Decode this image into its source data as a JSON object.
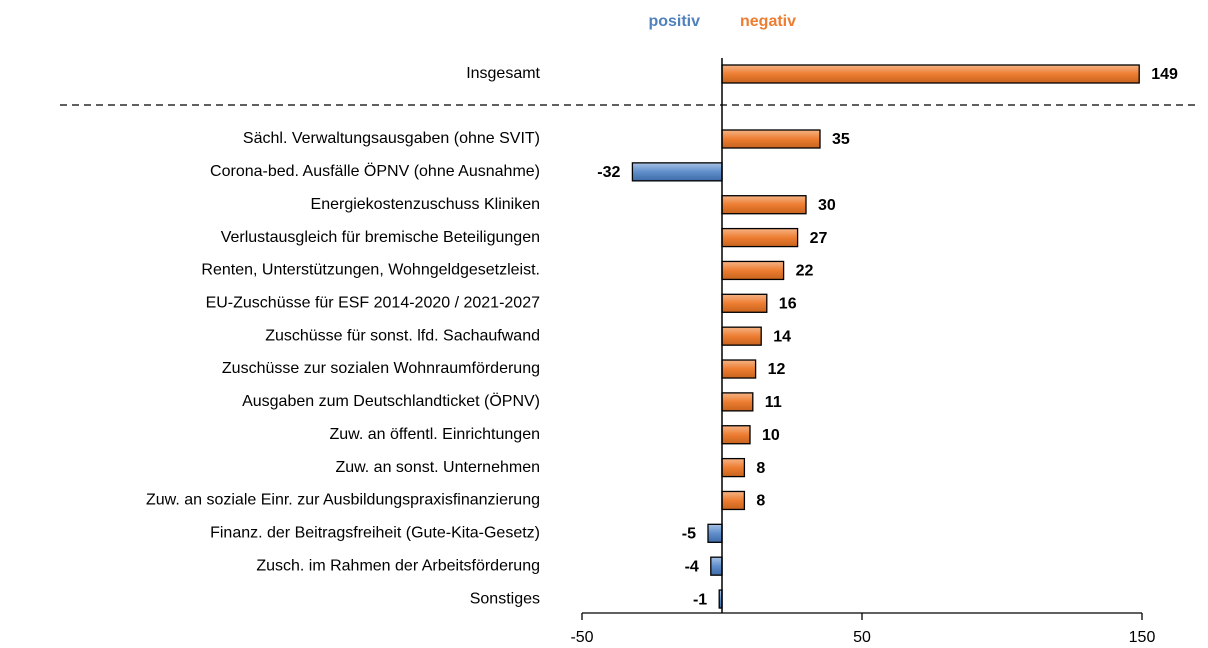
{
  "chart_data": {
    "type": "hbar",
    "legend": [
      {
        "label": "positiv",
        "color": "#4f81bd"
      },
      {
        "label": "negativ",
        "color": "#ed7d31"
      }
    ],
    "categories": [
      "Insgesamt",
      "Sächl. Verwaltungsausgaben (ohne SVIT)",
      "Corona-bed. Ausfälle ÖPNV (ohne Ausnahme)",
      "Energiekostenzuschuss Kliniken",
      "Verlustausgleich für bremische Beteiligungen",
      "Renten, Unterstützungen, Wohngeldgesetzleist.",
      "EU-Zuschüsse für ESF 2014-2020 / 2021-2027",
      "Zuschüsse für sonst. lfd. Sachaufwand",
      "Zuschüsse zur sozialen Wohnraumförderung",
      "Ausgaben zum Deutschlandticket (ÖPNV)",
      "Zuw. an öffentl. Einrichtungen",
      "Zuw. an sonst. Unternehmen",
      "Zuw. an soziale Einr. zur Ausbildungspraxisfinanzierung",
      "Finanz. der Beitragsfreiheit (Gute-Kita-Gesetz)",
      "Zusch. im Rahmen der Arbeitsförderung",
      "Sonstiges"
    ],
    "values": [
      149,
      35,
      -32,
      30,
      27,
      22,
      16,
      14,
      12,
      11,
      10,
      8,
      8,
      -5,
      -4,
      -1
    ],
    "xlim": [
      -50,
      150
    ],
    "xticks": [
      -50,
      50,
      150
    ]
  }
}
